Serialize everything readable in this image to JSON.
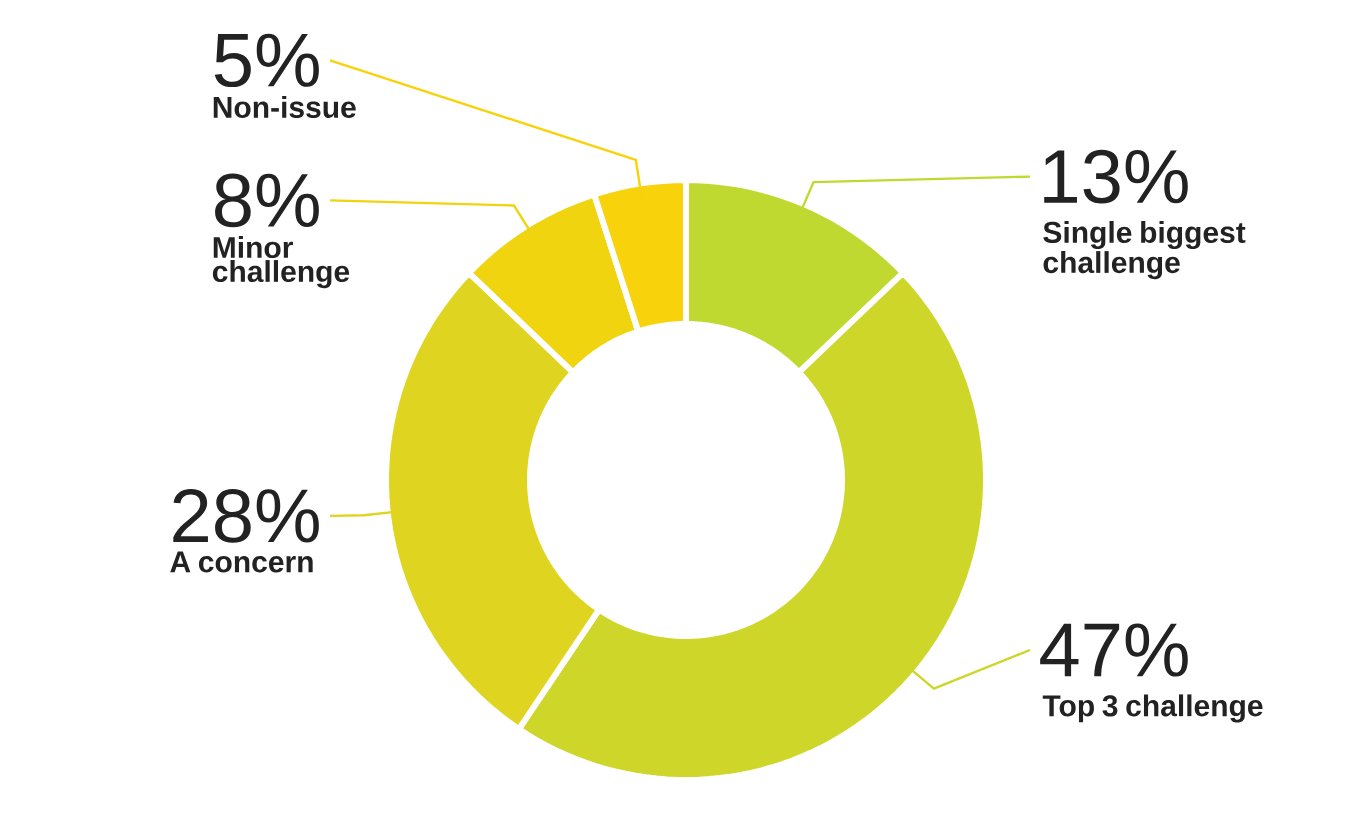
{
  "chart_data": {
    "type": "donut",
    "categories": [
      "Single biggest challenge",
      "Top 3 challenge",
      "A concern",
      "Minor challenge",
      "Non-issue"
    ],
    "values": [
      13,
      47,
      28,
      8,
      5
    ],
    "value_labels": [
      "13%",
      "47%",
      "28%",
      "8%",
      "5%"
    ],
    "colors": [
      "#c0d930",
      "#cdd629",
      "#dfd41f",
      "#f0d410",
      "#f8d20a"
    ]
  }
}
